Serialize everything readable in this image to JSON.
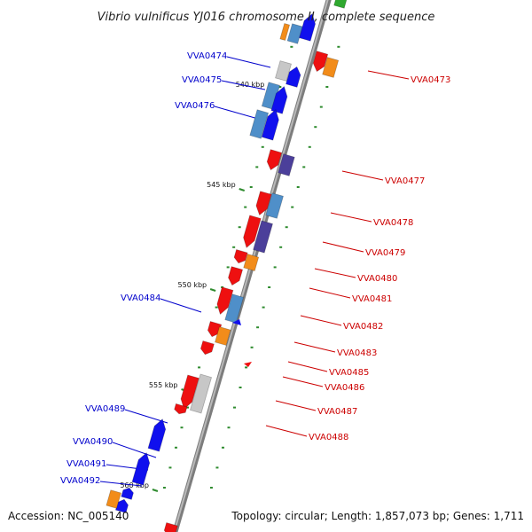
{
  "title": "Vibrio vulnificus YJ016 chromosome II, complete sequence",
  "footer": {
    "accession": "Accession: NC_005140",
    "summary": "Topology: circular; Length: 1,857,073 bp; Genes: 1,711"
  },
  "colors": {
    "backbone": "#8a8a8a",
    "forward_gene": "#1010ee",
    "reverse_gene": "#ee1010",
    "cds_blue": "#4f8fc9",
    "cds_purple": "#4b3f9a",
    "cds_orange": "#f28c1a",
    "cds_gray": "#c7c7c7",
    "cds_green": "#2fa82f",
    "tick": "#2e8b2e",
    "left_label": "#0000cc",
    "right_label": "#cc0000"
  },
  "axis": {
    "unit": "kbp",
    "tick_labels": [
      {
        "kbp": 540,
        "label": "540 kbp"
      },
      {
        "kbp": 545,
        "label": "545 kbp"
      },
      {
        "kbp": 550,
        "label": "550 kbp"
      },
      {
        "kbp": 555,
        "label": "555 kbp"
      },
      {
        "kbp": 560,
        "label": "560 kbp"
      }
    ]
  },
  "left_labels": [
    {
      "label": "VVA0474",
      "kbp": 539.3
    },
    {
      "label": "VVA0475",
      "kbp": 540.2
    },
    {
      "label": "VVA0476",
      "kbp": 541.2
    },
    {
      "label": "VVA0484",
      "kbp": 551.7
    },
    {
      "label": "VVA0489",
      "kbp": 557.0
    },
    {
      "label": "VVA0490",
      "kbp": 558.3
    },
    {
      "label": "VVA0491",
      "kbp": 559.2
    },
    {
      "label": "VVA0492",
      "kbp": 559.9
    }
  ],
  "right_labels": [
    {
      "label": "VVA0473",
      "kbp": 539.7
    },
    {
      "label": "VVA0477",
      "kbp": 544.3
    },
    {
      "label": "VVA0478",
      "kbp": 546.3
    },
    {
      "label": "VVA0479",
      "kbp": 547.7
    },
    {
      "label": "VVA0480",
      "kbp": 548.8
    },
    {
      "label": "VVA0481",
      "kbp": 549.7
    },
    {
      "label": "VVA0482",
      "kbp": 551.0
    },
    {
      "label": "VVA0483",
      "kbp": 552.4
    },
    {
      "label": "VVA0485",
      "kbp": 553.3
    },
    {
      "label": "VVA0486",
      "kbp": 554.0
    },
    {
      "label": "VVA0487",
      "kbp": 555.2
    },
    {
      "label": "VVA0488",
      "kbp": 556.4
    }
  ]
}
